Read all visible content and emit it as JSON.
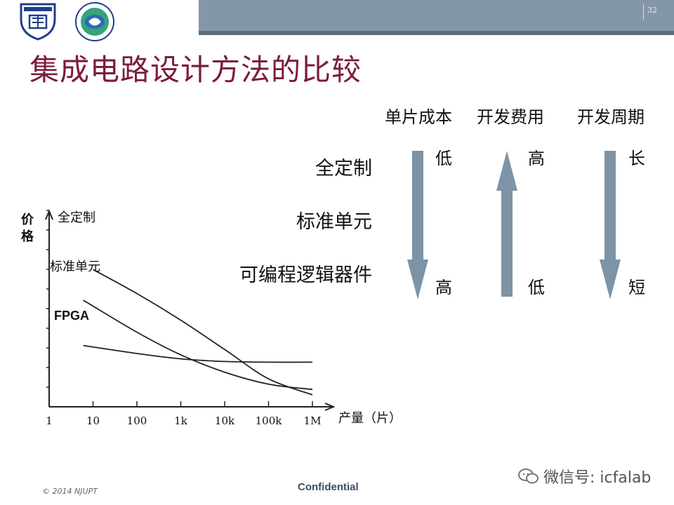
{
  "header": {
    "page_number": "32"
  },
  "title": "集成电路设计方法的比较",
  "comparison": {
    "columns": [
      "单片成本",
      "开发费用",
      "开发周期"
    ],
    "rows": [
      "全定制",
      "标准单元",
      "可编程逻辑器件"
    ],
    "unit_cost": {
      "top": "低",
      "bottom": "高",
      "arrow": "down"
    },
    "dev_cost": {
      "top": "高",
      "bottom": "低",
      "arrow": "up"
    },
    "dev_cycle": {
      "top": "长",
      "bottom": "短",
      "arrow": "down"
    },
    "arrow_color": "#7d93a6"
  },
  "chart_data": {
    "type": "line",
    "ylabel": "价格",
    "xlabel": "产量（片）",
    "xscale": "log",
    "x_ticks": [
      "1",
      "10",
      "100",
      "1k",
      "10k",
      "100k",
      "1M"
    ],
    "series": [
      {
        "name": "全定制",
        "points": [
          [
            10,
            10.3
          ],
          [
            100,
            8.5
          ],
          [
            1000,
            6.5
          ],
          [
            10000,
            4.3
          ],
          [
            100000,
            2.1
          ],
          [
            1000000,
            0.9
          ]
        ]
      },
      {
        "name": "标准单元",
        "points": [
          [
            6,
            8.0
          ],
          [
            100,
            5.6
          ],
          [
            1000,
            3.9
          ],
          [
            10000,
            2.6
          ],
          [
            100000,
            1.7
          ],
          [
            1000000,
            1.3
          ]
        ]
      },
      {
        "name": "FPGA",
        "points": [
          [
            6,
            4.6
          ],
          [
            100,
            4.0
          ],
          [
            1000,
            3.6
          ],
          [
            10000,
            3.4
          ],
          [
            100000,
            3.35
          ],
          [
            1000000,
            3.35
          ]
        ]
      }
    ]
  },
  "footer": {
    "copyright": "© 2014 NJUPT",
    "confidential": "Confidential",
    "wechat": "微信号: icfalab"
  }
}
